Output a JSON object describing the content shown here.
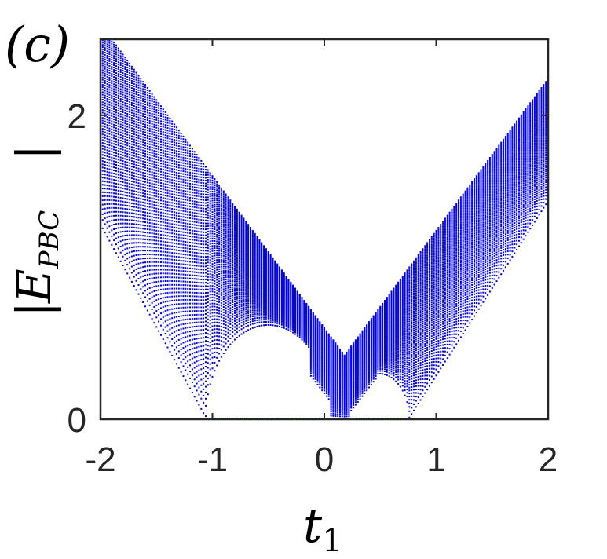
{
  "panel_label": "(c)",
  "chart_data": {
    "type": "scatter",
    "xlabel_main": "t",
    "xlabel_sub": "1",
    "ylabel_main": "E",
    "ylabel_sub": "PBC",
    "xlim": [
      -2,
      2
    ],
    "ylim": [
      0,
      2.5
    ],
    "x_ticks": [
      -2,
      -1,
      0,
      1,
      2
    ],
    "x_tick_labels": [
      "-2",
      "-1",
      "0",
      "1",
      "2"
    ],
    "y_ticks": [
      0,
      2
    ],
    "y_tick_labels": [
      "0",
      "2"
    ],
    "grid": false,
    "marker_color": "#0000ff",
    "model": {
      "description_source": "bands |E| vs t1 (dotted spectrum)",
      "gap_closing_t1": 0.18,
      "zero_band": [
        -1.05,
        0.75
      ],
      "left_dome": {
        "center": -0.5,
        "half_width": 0.56,
        "peak": 0.62
      },
      "right_dome": {
        "center": 0.49,
        "half_width": 0.27,
        "peak": 0.3
      }
    }
  }
}
